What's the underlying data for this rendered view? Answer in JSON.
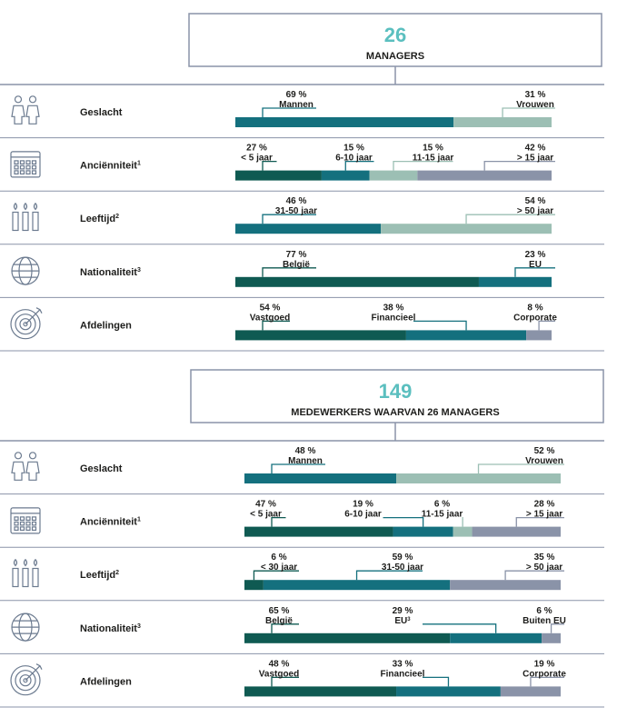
{
  "sections": [
    {
      "count": "26",
      "title": "MANAGERS",
      "rows": [
        {
          "label": "Geslacht",
          "segments": [
            {
              "name": "Mannen",
              "value": 69,
              "value_label": "69 %",
              "color": "#14707e"
            },
            {
              "name": "Vrouwen",
              "value": 31,
              "value_label": "31 %",
              "color": "#9cbfb4"
            }
          ]
        },
        {
          "label": "Anciënniteit",
          "sup": "1",
          "segments": [
            {
              "name": "< 5 jaar",
              "value": 27,
              "value_label": "27 %",
              "color": "#0f5a52"
            },
            {
              "name": "6-10 jaar",
              "value": 15,
              "value_label": "15 %",
              "color": "#14707e"
            },
            {
              "name": "11-15 jaar",
              "value": 15,
              "value_label": "15 %",
              "color": "#9cbfb4"
            },
            {
              "name": "> 15 jaar",
              "value": 42,
              "value_label": "42 %",
              "color": "#8a93a8"
            }
          ]
        },
        {
          "label": "Leeftijd",
          "sup": "2",
          "segments": [
            {
              "name": "31-50 jaar",
              "value": 46,
              "value_label": "46 %",
              "color": "#14707e"
            },
            {
              "name": "> 50 jaar",
              "value": 54,
              "value_label": "54 %",
              "color": "#9cbfb4"
            }
          ]
        },
        {
          "label": "Nationaliteit",
          "sup": "3",
          "segments": [
            {
              "name": "België",
              "value": 77,
              "value_label": "77 %",
              "color": "#0f5a52"
            },
            {
              "name": "EU",
              "value": 23,
              "value_label": "23 %",
              "color": "#14707e"
            }
          ]
        },
        {
          "label": "Afdelingen",
          "segments": [
            {
              "name": "Vastgoed",
              "value": 54,
              "value_label": "54 %",
              "color": "#0f5a52"
            },
            {
              "name": "Financieel",
              "value": 38,
              "value_label": "38 %",
              "color": "#14707e"
            },
            {
              "name": "Corporate",
              "value": 8,
              "value_label": "8 %",
              "color": "#8a93a8"
            }
          ]
        }
      ]
    },
    {
      "count": "149",
      "title": "MEDEWERKERS WAARVAN 26 MANAGERS",
      "rows": [
        {
          "label": "Geslacht",
          "segments": [
            {
              "name": "Mannen",
              "value": 48,
              "value_label": "48 %",
              "color": "#14707e"
            },
            {
              "name": "Vrouwen",
              "value": 52,
              "value_label": "52 %",
              "color": "#9cbfb4"
            }
          ]
        },
        {
          "label": "Anciënniteit",
          "sup": "1",
          "segments": [
            {
              "name": "< 5 jaar",
              "value": 47,
              "value_label": "47 %",
              "color": "#0f5a52"
            },
            {
              "name": "6-10 jaar",
              "value": 19,
              "value_label": "19 %",
              "color": "#14707e"
            },
            {
              "name": "11-15 jaar",
              "value": 6,
              "value_label": "6 %",
              "color": "#9cbfb4"
            },
            {
              "name": "> 15 jaar",
              "value": 28,
              "value_label": "28 %",
              "color": "#8a93a8"
            }
          ]
        },
        {
          "label": "Leeftijd",
          "sup": "2",
          "segments": [
            {
              "name": "< 30 jaar",
              "value": 6,
              "value_label": "6 %",
              "color": "#0f5a52"
            },
            {
              "name": "31-50 jaar",
              "value": 59,
              "value_label": "59 %",
              "color": "#14707e"
            },
            {
              "name": "> 50 jaar",
              "value": 35,
              "value_label": "35 %",
              "color": "#8a93a8"
            }
          ]
        },
        {
          "label": "Nationaliteit",
          "sup": "3",
          "segments": [
            {
              "name": "België",
              "value": 65,
              "value_label": "65 %",
              "color": "#0f5a52"
            },
            {
              "name": "EU",
              "sup": "3",
              "value": 29,
              "value_label": "29 %",
              "color": "#14707e"
            },
            {
              "name": "Buiten EU",
              "value": 6,
              "value_label": "6 %",
              "color": "#8a93a8"
            }
          ]
        },
        {
          "label": "Afdelingen",
          "segments": [
            {
              "name": "Vastgoed",
              "value": 48,
              "value_label": "48 %",
              "color": "#0f5a52"
            },
            {
              "name": "Financieel",
              "value": 33,
              "value_label": "33 %",
              "color": "#14707e"
            },
            {
              "name": "Corporate",
              "value": 19,
              "value_label": "19 %",
              "color": "#8a93a8"
            }
          ]
        }
      ]
    }
  ]
}
